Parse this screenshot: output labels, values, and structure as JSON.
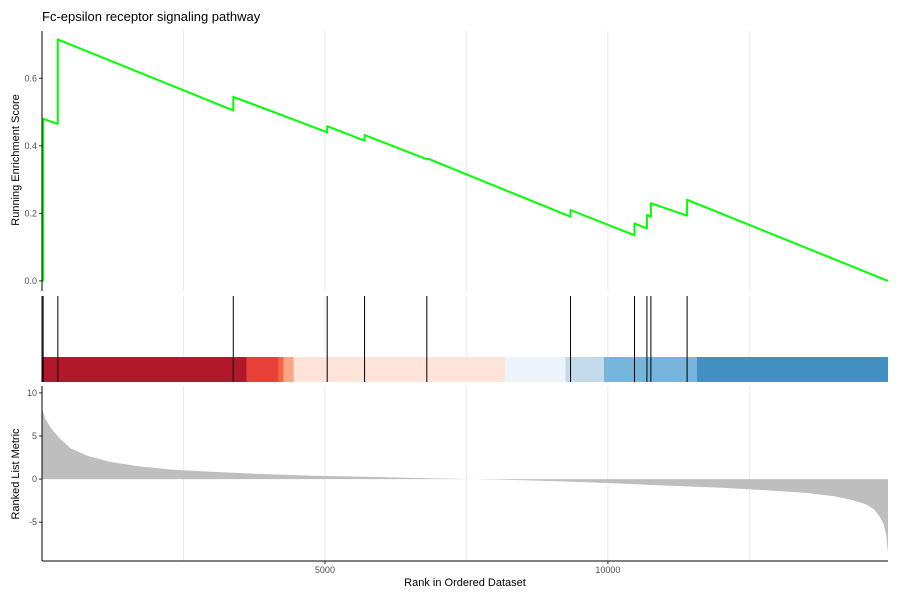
{
  "chart_data": {
    "type": "line",
    "title": "Fc-epsilon receptor signaling pathway",
    "xlabel": "Rank in Ordered Dataset",
    "xlim": [
      0,
      14950
    ],
    "x_ticks": [
      5000,
      10000
    ],
    "grid": true,
    "enrichment": {
      "ylabel": "Running Enrichment Score",
      "ylim": [
        -0.03,
        0.74
      ],
      "y_ticks": [
        0.0,
        0.2,
        0.4,
        0.6
      ],
      "line_color": "#00FF00",
      "x": [
        0,
        20,
        20,
        280,
        280,
        3380,
        3380,
        5040,
        5040,
        5700,
        5700,
        6770,
        6850,
        9340,
        9340,
        10470,
        10470,
        10690,
        10690,
        10760,
        10760,
        11400,
        11400,
        14950
      ],
      "y": [
        0.0,
        0.0,
        0.48,
        0.465,
        0.715,
        0.505,
        0.545,
        0.44,
        0.458,
        0.415,
        0.432,
        0.362,
        0.36,
        0.19,
        0.21,
        0.135,
        0.17,
        0.155,
        0.195,
        0.19,
        0.23,
        0.193,
        0.24,
        0.0
      ]
    },
    "hits": [
      20,
      280,
      3380,
      5040,
      5700,
      6800,
      9340,
      10470,
      10690,
      10760,
      11400
    ],
    "rank_color_bar": [
      {
        "start": 0,
        "end": 3620,
        "color": "#B2182B"
      },
      {
        "start": 3620,
        "end": 4180,
        "color": "#E7413A"
      },
      {
        "start": 4180,
        "end": 4270,
        "color": "#F4663F"
      },
      {
        "start": 4270,
        "end": 4450,
        "color": "#FCA486"
      },
      {
        "start": 4450,
        "end": 8180,
        "color": "#FDE3D8"
      },
      {
        "start": 8180,
        "end": 9250,
        "color": "#EDF3FA"
      },
      {
        "start": 9250,
        "end": 9930,
        "color": "#C2DAE9"
      },
      {
        "start": 9930,
        "end": 11570,
        "color": "#76B4D9"
      },
      {
        "start": 11570,
        "end": 14950,
        "color": "#4390C3"
      }
    ],
    "ranked_metric": {
      "ylabel": "Ranked List Metric",
      "ylim": [
        -9.5,
        10.8
      ],
      "y_ticks": [
        -5,
        0,
        5,
        10
      ],
      "fill_color": "#BEBEBE",
      "x": [
        0,
        60,
        150,
        300,
        500,
        800,
        1200,
        1700,
        2300,
        3000,
        3800,
        4800,
        5800,
        6800,
        7400,
        8000,
        8600,
        9400,
        10300,
        11200,
        12000,
        12800,
        13500,
        14000,
        14300,
        14550,
        14700,
        14800,
        14870,
        14920,
        14950
      ],
      "y": [
        8.2,
        7.0,
        6.0,
        4.8,
        3.6,
        2.7,
        2.0,
        1.5,
        1.1,
        0.85,
        0.6,
        0.4,
        0.25,
        0.1,
        0.02,
        -0.05,
        -0.15,
        -0.3,
        -0.55,
        -0.8,
        -1.0,
        -1.3,
        -1.6,
        -2.0,
        -2.4,
        -2.9,
        -3.5,
        -4.3,
        -5.2,
        -6.5,
        -8.6
      ]
    }
  }
}
